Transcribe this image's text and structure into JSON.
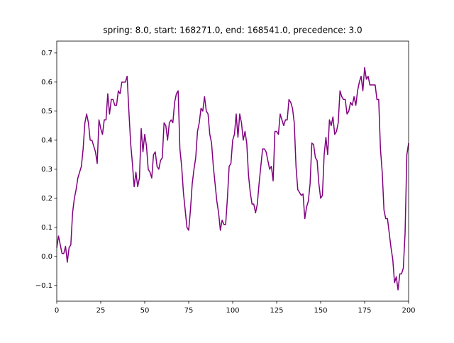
{
  "chart_data": {
    "type": "line",
    "title": "spring: 8.0, start: 168271.0, end: 168541.0, precedence: 3.0",
    "x": [
      0,
      1,
      2,
      3,
      4,
      5,
      6,
      7,
      8,
      9,
      10,
      11,
      12,
      13,
      14,
      15,
      16,
      17,
      18,
      19,
      20,
      21,
      22,
      23,
      24,
      25,
      26,
      27,
      28,
      29,
      30,
      31,
      32,
      33,
      34,
      35,
      36,
      37,
      38,
      39,
      40,
      41,
      42,
      43,
      44,
      45,
      46,
      47,
      48,
      49,
      50,
      51,
      52,
      53,
      54,
      55,
      56,
      57,
      58,
      59,
      60,
      61,
      62,
      63,
      64,
      65,
      66,
      67,
      68,
      69,
      70,
      71,
      72,
      73,
      74,
      75,
      76,
      77,
      78,
      79,
      80,
      81,
      82,
      83,
      84,
      85,
      86,
      87,
      88,
      89,
      90,
      91,
      92,
      93,
      94,
      95,
      96,
      97,
      98,
      99,
      100,
      101,
      102,
      103,
      104,
      105,
      106,
      107,
      108,
      109,
      110,
      111,
      112,
      113,
      114,
      115,
      116,
      117,
      118,
      119,
      120,
      121,
      122,
      123,
      124,
      125,
      126,
      127,
      128,
      129,
      130,
      131,
      132,
      133,
      134,
      135,
      136,
      137,
      138,
      139,
      140,
      141,
      142,
      143,
      144,
      145,
      146,
      147,
      148,
      149,
      150,
      151,
      152,
      153,
      154,
      155,
      156,
      157,
      158,
      159,
      160,
      161,
      162,
      163,
      164,
      165,
      166,
      167,
      168,
      169,
      170,
      171,
      172,
      173,
      174,
      175,
      176,
      177,
      178,
      179,
      180,
      181,
      182,
      183,
      184,
      185,
      186,
      187,
      188,
      189,
      190,
      191,
      192,
      193,
      194,
      195,
      196,
      197,
      198,
      199,
      200
    ],
    "series": [
      {
        "color": "#800080",
        "values": [
          0.03,
          0.07,
          0.04,
          0.01,
          0.01,
          0.035,
          -0.02,
          0.03,
          0.04,
          0.15,
          0.2,
          0.23,
          0.27,
          0.29,
          0.31,
          0.37,
          0.46,
          0.49,
          0.46,
          0.4,
          0.4,
          0.38,
          0.36,
          0.32,
          0.47,
          0.44,
          0.42,
          0.47,
          0.47,
          0.56,
          0.49,
          0.54,
          0.54,
          0.52,
          0.52,
          0.57,
          0.56,
          0.6,
          0.6,
          0.6,
          0.62,
          0.5,
          0.39,
          0.32,
          0.24,
          0.29,
          0.24,
          0.27,
          0.44,
          0.36,
          0.42,
          0.38,
          0.3,
          0.29,
          0.27,
          0.35,
          0.36,
          0.31,
          0.3,
          0.33,
          0.34,
          0.46,
          0.45,
          0.4,
          0.46,
          0.47,
          0.46,
          0.53,
          0.56,
          0.57,
          0.37,
          0.31,
          0.22,
          0.16,
          0.1,
          0.09,
          0.16,
          0.25,
          0.3,
          0.34,
          0.43,
          0.46,
          0.51,
          0.5,
          0.55,
          0.5,
          0.49,
          0.42,
          0.39,
          0.31,
          0.25,
          0.19,
          0.15,
          0.09,
          0.125,
          0.11,
          0.11,
          0.2,
          0.31,
          0.32,
          0.4,
          0.42,
          0.49,
          0.41,
          0.49,
          0.46,
          0.4,
          0.43,
          0.39,
          0.28,
          0.22,
          0.18,
          0.18,
          0.15,
          0.18,
          0.25,
          0.31,
          0.37,
          0.37,
          0.36,
          0.33,
          0.3,
          0.31,
          0.26,
          0.43,
          0.43,
          0.42,
          0.49,
          0.47,
          0.45,
          0.47,
          0.47,
          0.54,
          0.53,
          0.51,
          0.46,
          0.31,
          0.23,
          0.22,
          0.21,
          0.215,
          0.13,
          0.17,
          0.19,
          0.25,
          0.39,
          0.385,
          0.34,
          0.33,
          0.25,
          0.2,
          0.21,
          0.35,
          0.41,
          0.35,
          0.47,
          0.45,
          0.48,
          0.42,
          0.43,
          0.46,
          0.57,
          0.55,
          0.54,
          0.54,
          0.49,
          0.5,
          0.53,
          0.52,
          0.55,
          0.52,
          0.57,
          0.6,
          0.62,
          0.57,
          0.65,
          0.61,
          0.62,
          0.59,
          0.59,
          0.59,
          0.59,
          0.54,
          0.54,
          0.37,
          0.29,
          0.16,
          0.13,
          0.13,
          0.08,
          0.03,
          -0.01,
          -0.09,
          -0.07,
          -0.115,
          -0.06,
          -0.06,
          -0.04,
          0.08,
          0.35,
          0.39
        ]
      }
    ],
    "xlim": [
      0,
      200
    ],
    "xticks": [
      0,
      25,
      50,
      75,
      100,
      125,
      150,
      175,
      200
    ],
    "ylim": [
      -0.154,
      0.741
    ],
    "yticks": [
      {
        "value": -0.1,
        "label": "−0.1"
      },
      {
        "value": 0,
        "label": "0.0"
      },
      0.1,
      0.2,
      0.3,
      0.4,
      0.5,
      0.6,
      0.7
    ]
  }
}
